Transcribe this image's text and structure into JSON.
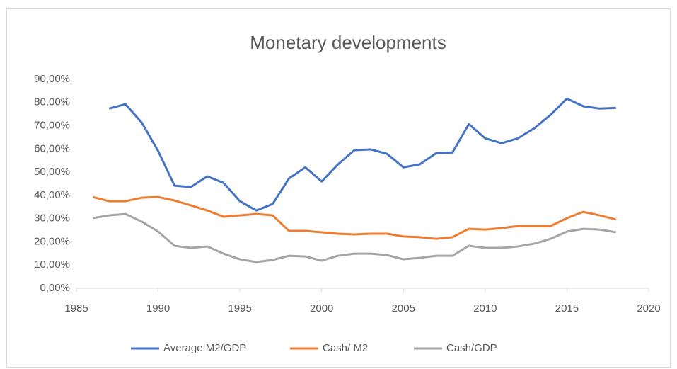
{
  "chart_data": {
    "type": "line",
    "title": "Monetary developments",
    "x": [
      1986,
      1987,
      1988,
      1989,
      1990,
      1991,
      1992,
      1993,
      1994,
      1995,
      1996,
      1997,
      1998,
      1999,
      2000,
      2001,
      2002,
      2003,
      2004,
      2005,
      2006,
      2007,
      2008,
      2009,
      2010,
      2011,
      2012,
      2013,
      2014,
      2015,
      2016,
      2017,
      2018
    ],
    "series": [
      {
        "name": "Average M2/GDP",
        "color": "#4472c4",
        "values": [
          null,
          77.4,
          79.3,
          71.3,
          59.1,
          44.2,
          43.6,
          48.2,
          45.4,
          37.5,
          33.5,
          36.3,
          47.3,
          52.1,
          46.0,
          53.4,
          59.5,
          59.8,
          57.9,
          52.1,
          53.4,
          58.2,
          58.5,
          70.7,
          64.6,
          62.5,
          64.6,
          68.9,
          74.7,
          81.7,
          78.4,
          77.4,
          77.7
        ]
      },
      {
        "name": "Cash/ M2",
        "color": "#ed7d31",
        "values": [
          39.3,
          37.5,
          37.5,
          39.0,
          39.3,
          37.8,
          35.7,
          33.5,
          30.8,
          31.4,
          32.0,
          31.4,
          24.7,
          24.7,
          24.1,
          23.5,
          23.2,
          23.5,
          23.5,
          22.3,
          22.0,
          21.3,
          22.0,
          25.6,
          25.3,
          25.9,
          26.8,
          26.8,
          26.8,
          30.2,
          32.9,
          31.4,
          29.6
        ]
      },
      {
        "name": "Cash/GDP",
        "color": "#a5a5a5",
        "values": [
          30.2,
          31.4,
          32.0,
          28.7,
          24.4,
          18.3,
          17.4,
          18.0,
          14.9,
          12.5,
          11.3,
          12.2,
          14.0,
          13.7,
          11.9,
          14.0,
          14.9,
          14.9,
          14.3,
          12.5,
          13.1,
          14.0,
          14.0,
          18.3,
          17.4,
          17.4,
          18.0,
          19.2,
          21.3,
          24.4,
          25.6,
          25.3,
          24.1
        ]
      }
    ],
    "xlim": [
      1985,
      2020
    ],
    "xticks": [
      1985,
      1990,
      1995,
      2000,
      2005,
      2010,
      2015,
      2020
    ],
    "ylim": [
      0,
      90
    ],
    "yticks": [
      {
        "value": 0,
        "label": "0,00%"
      },
      {
        "value": 10,
        "label": "10,00%"
      },
      {
        "value": 20,
        "label": "20,00%"
      },
      {
        "value": 30,
        "label": "30,00%"
      },
      {
        "value": 40,
        "label": "40,00%"
      },
      {
        "value": 50,
        "label": "50,00%"
      },
      {
        "value": 60,
        "label": "60,00%"
      },
      {
        "value": 70,
        "label": "70,00%"
      },
      {
        "value": 80,
        "label": "80,00%"
      },
      {
        "value": 90,
        "label": "90,00%"
      }
    ],
    "grid": false,
    "legend": "bottom"
  }
}
